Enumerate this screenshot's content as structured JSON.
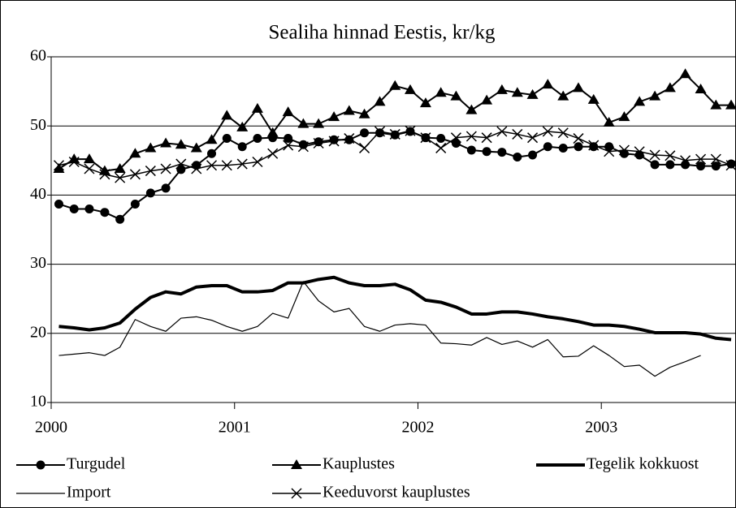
{
  "chart_data": {
    "type": "line",
    "title": "Sealiha hinnad Eestis, kr/kg",
    "x": [
      2000.042,
      2000.125,
      2000.208,
      2000.292,
      2000.375,
      2000.458,
      2000.542,
      2000.625,
      2000.708,
      2000.792,
      2000.875,
      2000.958,
      2001.042,
      2001.125,
      2001.208,
      2001.292,
      2001.375,
      2001.458,
      2001.542,
      2001.625,
      2001.708,
      2001.792,
      2001.875,
      2001.958,
      2002.042,
      2002.125,
      2002.208,
      2002.292,
      2002.375,
      2002.458,
      2002.542,
      2002.625,
      2002.708,
      2002.792,
      2002.875,
      2002.958,
      2003.042,
      2003.125,
      2003.208,
      2003.292,
      2003.375,
      2003.458,
      2003.542,
      2003.625,
      2003.708
    ],
    "xlim": [
      2000,
      2003.73
    ],
    "xticks": [
      2000,
      2001,
      2002,
      2003
    ],
    "ylim": [
      10,
      60
    ],
    "yticks": [
      10,
      20,
      30,
      40,
      50,
      60
    ],
    "grid": true,
    "legend": "bottom",
    "series": [
      {
        "name": "Turgudel",
        "color": "#000000",
        "marker": "circle",
        "line_width": 2,
        "values": [
          38.7,
          38,
          38,
          37.5,
          36.5,
          38.7,
          40.3,
          41,
          43.7,
          44.3,
          46,
          48.2,
          47,
          48.2,
          48.3,
          48.2,
          47.3,
          47.7,
          48,
          48,
          49,
          49,
          48.7,
          49.2,
          48.3,
          48.2,
          47.5,
          46.5,
          46.3,
          46.2,
          45.5,
          45.8,
          47,
          46.8,
          47,
          47,
          47,
          46,
          45.8,
          44.4,
          44.4,
          44.4,
          44.2,
          44.2,
          44.5
        ]
      },
      {
        "name": "Kauplustes",
        "color": "#000000",
        "marker": "triangle",
        "line_width": 2,
        "values": [
          43.8,
          45.2,
          45.2,
          43.5,
          43.8,
          46,
          46.8,
          47.5,
          47.3,
          46.8,
          48,
          51.5,
          49.8,
          52.5,
          49,
          52,
          50.3,
          50.3,
          51.3,
          52.2,
          51.7,
          53.5,
          55.8,
          55.2,
          53.3,
          54.8,
          54.3,
          52.3,
          53.7,
          55.2,
          54.8,
          54.5,
          56,
          54.3,
          55.5,
          53.8,
          50.5,
          51.3,
          53.5,
          54.3,
          55.5,
          57.5,
          55.3,
          53,
          53
        ]
      },
      {
        "name": "Tegelik kokkuost",
        "color": "#000000",
        "marker": null,
        "line_width": 4,
        "values": [
          21,
          20.8,
          20.5,
          20.8,
          21.5,
          23.5,
          25.2,
          26,
          25.7,
          26.7,
          26.9,
          26.9,
          26,
          26,
          26.2,
          27.3,
          27.3,
          27.8,
          28.1,
          27.3,
          26.9,
          26.9,
          27.1,
          26.3,
          24.8,
          24.5,
          23.8,
          22.8,
          22.8,
          23.1,
          23.1,
          22.8,
          22.4,
          22.1,
          21.7,
          21.2,
          21.2,
          21,
          20.6,
          20.1,
          20.1,
          20.1,
          19.9,
          19.3,
          19.1
        ]
      },
      {
        "name": "Import",
        "color": "#000000",
        "marker": null,
        "line_width": 1.2,
        "values": [
          16.8,
          17,
          17.2,
          16.8,
          18,
          22,
          21,
          20.3,
          22.2,
          22.4,
          21.9,
          21,
          20.3,
          21,
          22.9,
          22.2,
          27.5,
          24.7,
          23.1,
          23.6,
          21,
          20.3,
          21.2,
          21.4,
          21.2,
          18.6,
          18.5,
          18.3,
          19.4,
          18.4,
          18.9,
          18,
          19.1,
          16.6,
          16.7,
          18.2,
          16.8,
          15.2,
          15.4,
          13.8,
          15.1,
          15.9,
          16.8,
          null,
          null
        ]
      },
      {
        "name": "Keeduvorst kauplustes",
        "color": "#000000",
        "marker": "x",
        "line_width": 1.5,
        "values": [
          44.3,
          44.8,
          43.8,
          43,
          42.5,
          43,
          43.5,
          43.8,
          44.5,
          43.8,
          44.3,
          44.3,
          44.5,
          44.8,
          46,
          47.2,
          47,
          47.5,
          47.8,
          48.2,
          46.8,
          49.2,
          48.8,
          49.3,
          48.3,
          46.8,
          48.3,
          48.5,
          48.3,
          49.2,
          48.8,
          48.3,
          49.2,
          49,
          48.2,
          47.2,
          46.3,
          46.5,
          46.3,
          45.8,
          45.7,
          45,
          45.2,
          45.2,
          44.3
        ]
      }
    ]
  }
}
